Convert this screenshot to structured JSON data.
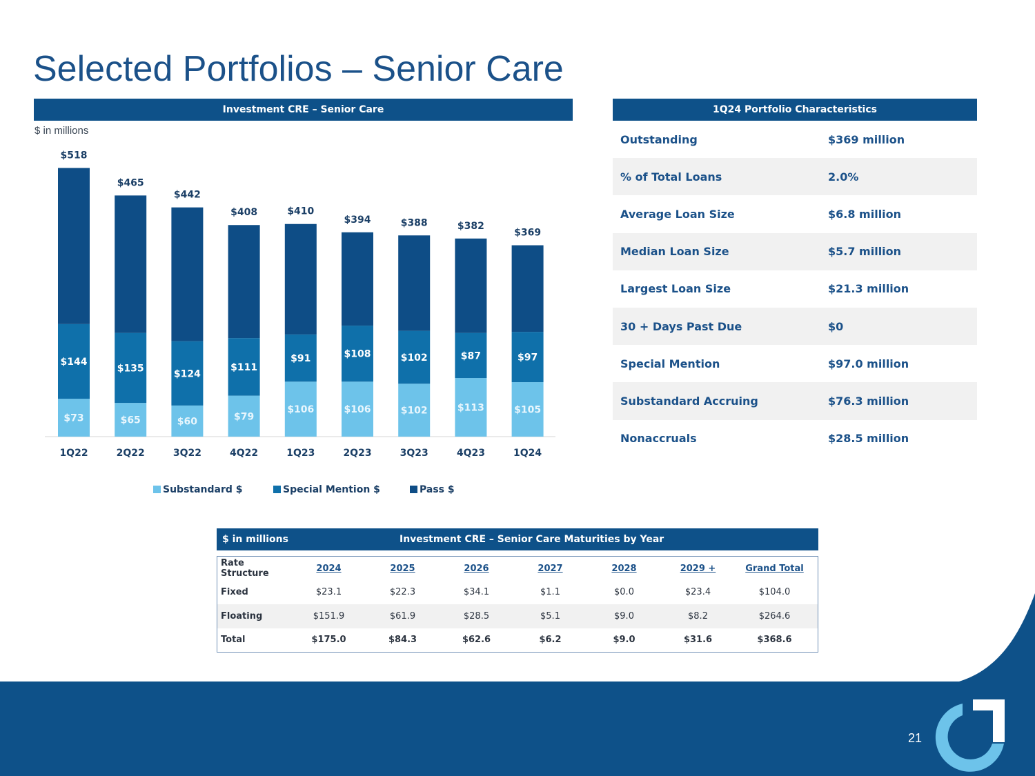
{
  "title": "Selected Portfolios – Senior Care",
  "chart_header": "Investment CRE – Senior Care",
  "units_note": "$ in millions",
  "chart_data": {
    "type": "bar",
    "stacked": true,
    "title": "Investment CRE – Senior Care",
    "ylabel": "$ in millions",
    "categories": [
      "1Q22",
      "2Q22",
      "3Q22",
      "4Q22",
      "1Q23",
      "2Q23",
      "3Q23",
      "4Q23",
      "1Q24"
    ],
    "series": [
      {
        "name": "Substandard $",
        "color": "#6dc3ea",
        "values": [
          73,
          65,
          60,
          79,
          106,
          106,
          102,
          113,
          105
        ]
      },
      {
        "name": "Special Mention $",
        "color": "#0f70aa",
        "values": [
          144,
          135,
          124,
          111,
          91,
          108,
          102,
          87,
          97
        ]
      },
      {
        "name": "Pass $",
        "color": "#0e4d86",
        "values": [
          301,
          265,
          258,
          218,
          213,
          180,
          184,
          182,
          167
        ]
      }
    ],
    "totals": [
      518,
      465,
      442,
      408,
      410,
      394,
      388,
      382,
      369
    ],
    "ylim": [
      0,
      540
    ],
    "legend_position": "bottom"
  },
  "characteristics": {
    "header": "1Q24 Portfolio Characteristics",
    "rows": [
      {
        "label": "Outstanding",
        "value": "$369 million"
      },
      {
        "label": "% of Total Loans",
        "value": "2.0%"
      },
      {
        "label": "Average Loan Size",
        "value": "$6.8 million"
      },
      {
        "label": "Median Loan Size",
        "value": "$5.7 million"
      },
      {
        "label": "Largest Loan Size",
        "value": "$21.3 million"
      },
      {
        "label": "30 + Days Past Due",
        "value": "$0"
      },
      {
        "label": "Special Mention",
        "value": "$97.0 million"
      },
      {
        "label": "Substandard Accruing",
        "value": "$76.3 million"
      },
      {
        "label": "Nonaccruals",
        "value": "$28.5 million"
      }
    ]
  },
  "maturities": {
    "units": "$ in millions",
    "title": "Investment CRE – Senior Care Maturities by Year",
    "columns": [
      "Rate Structure",
      "2024",
      "2025",
      "2026",
      "2027",
      "2028",
      "2029 +",
      "Grand Total"
    ],
    "rows": [
      {
        "label": "Fixed",
        "values": [
          "$23.1",
          "$22.3",
          "$34.1",
          "$1.1",
          "$0.0",
          "$23.4",
          "$104.0"
        ]
      },
      {
        "label": "Floating",
        "values": [
          "$151.9",
          "$61.9",
          "$28.5",
          "$5.1",
          "$9.0",
          "$8.2",
          "$264.6"
        ]
      },
      {
        "label": "Total",
        "values": [
          "$175.0",
          "$84.3",
          "$62.6",
          "$6.2",
          "$9.0",
          "$31.6",
          "$368.6"
        ]
      }
    ]
  },
  "page_number": "21",
  "colors": {
    "brand": "#0e5189",
    "accent": "#6dc3ea",
    "title": "#1b5189"
  }
}
